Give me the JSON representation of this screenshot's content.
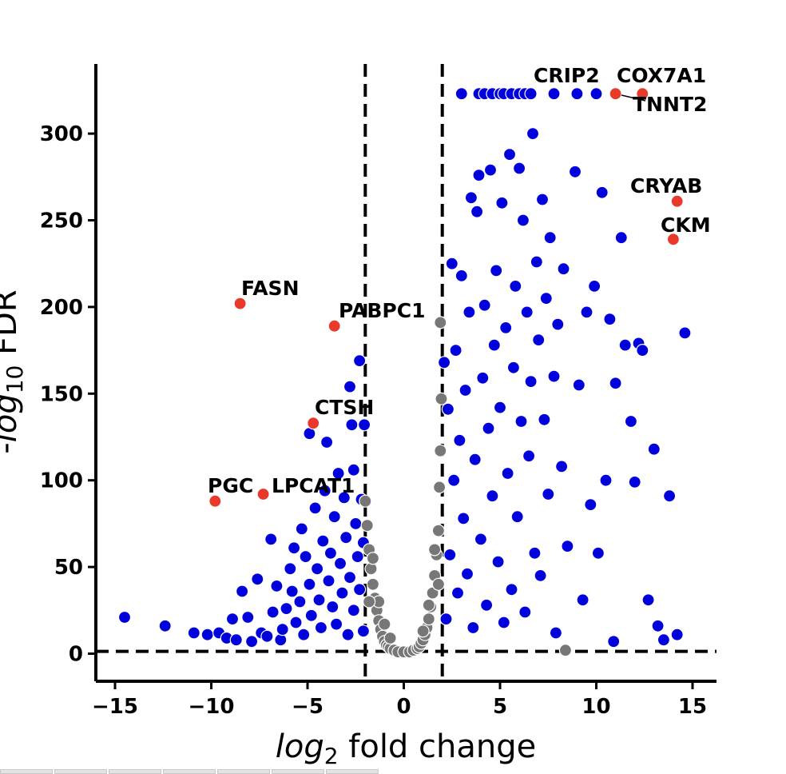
{
  "chart_data": {
    "type": "scatter",
    "title": "",
    "xlabel_italic": "log",
    "xlabel_sub": "2",
    "xlabel_rest": " fold change",
    "ylabel_prefix": "-",
    "ylabel_italic": "log",
    "ylabel_sub": "10",
    "ylabel_rest": " FDR",
    "xlim": [
      -16,
      16
    ],
    "ylim": [
      -15,
      340
    ],
    "xticks": [
      -15,
      -10,
      -5,
      0,
      5,
      10,
      15
    ],
    "xtick_labels": [
      "−15",
      "−10",
      "−5",
      "0",
      "5",
      "10",
      "15"
    ],
    "yticks": [
      0,
      50,
      100,
      150,
      200,
      250,
      300
    ],
    "ytick_labels": [
      "0",
      "50",
      "100",
      "150",
      "200",
      "250",
      "300"
    ],
    "thresholds": {
      "fc_low": -2,
      "fc_high": 2,
      "fdr_line": 1.3
    },
    "grid": false,
    "colors": {
      "significant": "#0000dd",
      "not_significant": "#777777",
      "highlighted": "#e8392b",
      "point_edge": "#ffffff"
    },
    "series": [
      {
        "values": [
          [
            -14.5,
            21
          ],
          [
            -12.4,
            16
          ],
          [
            -10.9,
            12
          ],
          [
            -10.2,
            11
          ],
          [
            -9.6,
            12
          ],
          [
            -9.2,
            9
          ],
          [
            -8.9,
            20
          ],
          [
            -8.7,
            8
          ],
          [
            -8.4,
            36
          ],
          [
            -8.1,
            21
          ],
          [
            -7.9,
            7
          ],
          [
            -7.6,
            43
          ],
          [
            -7.4,
            12
          ],
          [
            -7.1,
            10
          ],
          [
            -6.9,
            66
          ],
          [
            -6.8,
            24
          ],
          [
            -6.6,
            39
          ],
          [
            -6.4,
            8
          ],
          [
            -6.3,
            14
          ],
          [
            -6.1,
            26
          ],
          [
            -5.9,
            49
          ],
          [
            -5.8,
            36
          ],
          [
            -5.7,
            61
          ],
          [
            -5.6,
            18
          ],
          [
            -5.4,
            30
          ],
          [
            -5.3,
            72
          ],
          [
            -5.2,
            11
          ],
          [
            -5.1,
            56
          ],
          [
            -4.9,
            40
          ],
          [
            -4.9,
            127
          ],
          [
            -4.8,
            22
          ],
          [
            -4.6,
            84
          ],
          [
            -4.5,
            49
          ],
          [
            -4.4,
            31
          ],
          [
            -4.3,
            15
          ],
          [
            -4.2,
            65
          ],
          [
            -4.1,
            94
          ],
          [
            -4.0,
            122
          ],
          [
            -3.9,
            42
          ],
          [
            -3.8,
            58
          ],
          [
            -3.7,
            27
          ],
          [
            -3.6,
            79
          ],
          [
            -3.5,
            17
          ],
          [
            -3.4,
            104
          ],
          [
            -3.3,
            52
          ],
          [
            -3.2,
            35
          ],
          [
            -3.1,
            90
          ],
          [
            -3.0,
            67
          ],
          [
            -2.9,
            11
          ],
          [
            -2.8,
            44
          ],
          [
            -2.8,
            154
          ],
          [
            -2.7,
            132
          ],
          [
            -2.6,
            25
          ],
          [
            -2.6,
            106
          ],
          [
            -2.5,
            75
          ],
          [
            -2.4,
            56
          ],
          [
            -2.3,
            169
          ],
          [
            -2.3,
            37
          ],
          [
            -2.2,
            89
          ],
          [
            -2.1,
            13
          ],
          [
            -2.1,
            64
          ],
          [
            -2.05,
            132
          ],
          [
            2.1,
            168
          ],
          [
            2.2,
            20
          ],
          [
            2.3,
            141
          ],
          [
            2.4,
            57
          ],
          [
            2.5,
            225
          ],
          [
            2.6,
            100
          ],
          [
            2.7,
            175
          ],
          [
            2.8,
            35
          ],
          [
            2.9,
            123
          ],
          [
            3.0,
            218
          ],
          [
            3.1,
            78
          ],
          [
            3.2,
            152
          ],
          [
            3.3,
            46
          ],
          [
            3.4,
            197
          ],
          [
            3.5,
            263
          ],
          [
            3.6,
            15
          ],
          [
            3.7,
            112
          ],
          [
            3.8,
            255
          ],
          [
            3.9,
            276
          ],
          [
            4.0,
            66
          ],
          [
            4.1,
            159
          ],
          [
            4.2,
            201
          ],
          [
            4.3,
            28
          ],
          [
            4.4,
            130
          ],
          [
            4.5,
            279
          ],
          [
            4.6,
            91
          ],
          [
            4.7,
            178
          ],
          [
            4.8,
            221
          ],
          [
            4.9,
            53
          ],
          [
            5.0,
            142
          ],
          [
            5.1,
            260
          ],
          [
            5.2,
            18
          ],
          [
            5.3,
            188
          ],
          [
            5.4,
            104
          ],
          [
            5.5,
            288
          ],
          [
            5.6,
            37
          ],
          [
            5.7,
            165
          ],
          [
            5.8,
            212
          ],
          [
            5.9,
            79
          ],
          [
            6.0,
            280
          ],
          [
            6.1,
            134
          ],
          [
            6.2,
            250
          ],
          [
            6.3,
            24
          ],
          [
            6.4,
            197
          ],
          [
            6.5,
            114
          ],
          [
            6.6,
            157
          ],
          [
            6.7,
            300
          ],
          [
            6.8,
            58
          ],
          [
            6.9,
            226
          ],
          [
            7.0,
            181
          ],
          [
            7.1,
            45
          ],
          [
            7.2,
            262
          ],
          [
            7.3,
            135
          ],
          [
            7.4,
            205
          ],
          [
            7.5,
            92
          ],
          [
            7.6,
            240
          ],
          [
            7.8,
            160
          ],
          [
            7.9,
            12
          ],
          [
            8.0,
            190
          ],
          [
            8.2,
            108
          ],
          [
            8.3,
            222
          ],
          [
            8.5,
            62
          ],
          [
            8.9,
            278
          ],
          [
            9.1,
            155
          ],
          [
            9.3,
            31
          ],
          [
            9.5,
            197
          ],
          [
            9.7,
            86
          ],
          [
            9.9,
            212
          ],
          [
            10.1,
            58
          ],
          [
            10.3,
            266
          ],
          [
            10.5,
            100
          ],
          [
            10.7,
            193
          ],
          [
            10.9,
            7
          ],
          [
            11.0,
            156
          ],
          [
            11.3,
            240
          ],
          [
            11.5,
            178
          ],
          [
            11.8,
            134
          ],
          [
            12.0,
            99
          ],
          [
            12.2,
            179
          ],
          [
            12.4,
            175
          ],
          [
            12.7,
            31
          ],
          [
            13.0,
            118
          ],
          [
            13.2,
            16
          ],
          [
            13.5,
            8
          ],
          [
            13.8,
            91
          ],
          [
            14.2,
            11
          ],
          [
            14.6,
            185
          ],
          [
            3.0,
            323
          ],
          [
            3.9,
            323
          ],
          [
            4.2,
            323
          ],
          [
            4.6,
            323
          ],
          [
            5.0,
            323
          ],
          [
            5.2,
            323
          ],
          [
            5.6,
            323
          ],
          [
            6.0,
            323
          ],
          [
            6.3,
            323
          ],
          [
            6.6,
            323
          ],
          [
            7.8,
            323
          ],
          [
            9.0,
            323
          ],
          [
            10.0,
            323
          ]
        ]
      },
      {
        "values": [
          [
            -2.0,
            88
          ],
          [
            -1.9,
            74
          ],
          [
            -1.8,
            60
          ],
          [
            -1.7,
            49
          ],
          [
            -1.6,
            40
          ],
          [
            -1.5,
            32
          ],
          [
            -1.4,
            25
          ],
          [
            -1.3,
            19
          ],
          [
            -1.2,
            14
          ],
          [
            -1.1,
            10
          ],
          [
            -1.0,
            7
          ],
          [
            -0.9,
            5
          ],
          [
            -0.8,
            4
          ],
          [
            -0.7,
            3
          ],
          [
            -0.5,
            2
          ],
          [
            -0.3,
            1
          ],
          [
            0.0,
            1
          ],
          [
            0.3,
            1
          ],
          [
            0.5,
            2
          ],
          [
            0.7,
            3
          ],
          [
            0.8,
            4
          ],
          [
            0.9,
            6
          ],
          [
            1.0,
            8
          ],
          [
            1.1,
            11
          ],
          [
            1.2,
            15
          ],
          [
            1.3,
            20
          ],
          [
            1.4,
            27
          ],
          [
            1.5,
            35
          ],
          [
            1.6,
            45
          ],
          [
            1.7,
            57
          ],
          [
            1.8,
            71
          ],
          [
            1.85,
            96
          ],
          [
            1.9,
            117
          ],
          [
            1.95,
            147
          ],
          [
            1.9,
            191
          ],
          [
            -1.6,
            55
          ],
          [
            -1.3,
            30
          ],
          [
            -1.0,
            17
          ],
          [
            -0.7,
            9
          ],
          [
            1.0,
            13
          ],
          [
            1.3,
            28
          ],
          [
            1.6,
            60
          ],
          [
            -1.8,
            30
          ],
          [
            1.8,
            40
          ],
          [
            8.4,
            2
          ]
        ]
      },
      {
        "values": [
          [
            -8.5,
            202
          ],
          [
            -3.6,
            189
          ],
          [
            -4.7,
            133
          ],
          [
            -9.8,
            88
          ],
          [
            -7.3,
            92
          ],
          [
            11.0,
            323
          ],
          [
            12.4,
            323
          ],
          [
            14.2,
            261
          ],
          [
            14.0,
            239
          ]
        ],
        "labels": [
          "FASN",
          "PABPC1",
          "CTSH",
          "PGC",
          "LPCAT1",
          "CRIP2",
          "COX7A1",
          "CRYAB",
          "CKM"
        ]
      }
    ],
    "annotations": [
      "FASN",
      "PABPC1",
      "CTSH",
      "PGC",
      "LPCAT1",
      "CRIP2",
      "COX7A1",
      "TNNT2",
      "CRYAB",
      "CKM"
    ]
  }
}
